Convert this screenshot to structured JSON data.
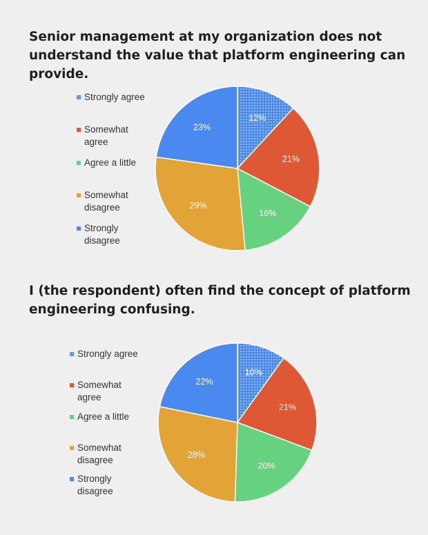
{
  "chart_data": [
    {
      "type": "pie",
      "title": "Senior management at my organization does not understand the value that platform engineering can provide.",
      "categories": [
        "Strongly agree",
        "Somewhat agree",
        "Agree a little",
        "Somewhat disagree",
        "Strongly disagree"
      ],
      "values": [
        12,
        21,
        16,
        29,
        23
      ],
      "value_labels": [
        "12%",
        "21%",
        "16%",
        "29%",
        "23%"
      ],
      "colors": [
        "#4a89f0",
        "#df5836",
        "#66d27f",
        "#e2a337",
        "#4a89f0"
      ],
      "first_slice_pattern": "dotted",
      "legend": {
        "position": "left",
        "entries": [
          "Strongly agree",
          "Somewhat agree",
          "Agree a little",
          "Somewhat disagree",
          "Strongly disagree"
        ]
      }
    },
    {
      "type": "pie",
      "title": "I (the respondent) often find the concept of platform engineering confusing.",
      "categories": [
        "Strongly agree",
        "Somewhat agree",
        "Agree a little",
        "Somewhat disagree",
        "Strongly disagree"
      ],
      "values": [
        10,
        21,
        20,
        28,
        22
      ],
      "value_labels": [
        "10%",
        "21%",
        "20%",
        "28%",
        "22%"
      ],
      "colors": [
        "#4a89f0",
        "#df5836",
        "#66d27f",
        "#e2a337",
        "#4a89f0"
      ],
      "first_slice_pattern": "dotted",
      "legend": {
        "position": "left",
        "entries": [
          "Strongly agree",
          "Somewhat agree",
          "Agree a little",
          "Somewhat disagree",
          "Strongly disagree"
        ]
      }
    }
  ]
}
